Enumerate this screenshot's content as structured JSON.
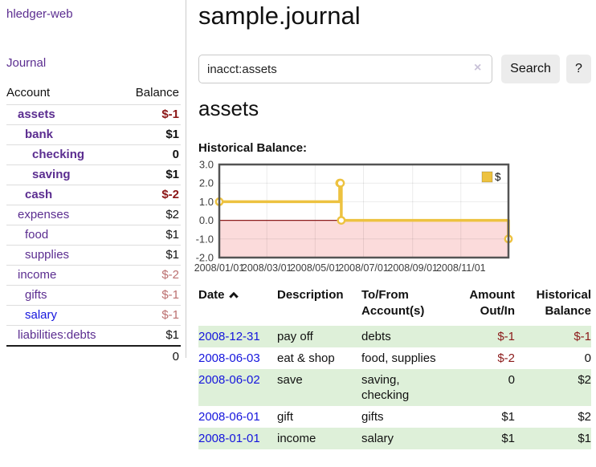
{
  "app": {
    "title": "hledger-web"
  },
  "colors": {
    "link_purple": "#5b2d90",
    "link_blue": "#1515dd",
    "negative_strong": "#8b1515",
    "negative_soft": "#bb6f6f",
    "row_stripe_green": "#def0d9",
    "button_gray": "#ececec"
  },
  "sidebar": {
    "journal_link": "Journal",
    "accounts": {
      "headers": {
        "account": "Account",
        "balance": "Balance"
      },
      "rows": [
        {
          "name": "assets",
          "indent": 1,
          "bold": true,
          "link_style": "purple",
          "balance": "$-1",
          "balance_style": "neg-strong"
        },
        {
          "name": "bank",
          "indent": 2,
          "bold": true,
          "link_style": "purple",
          "balance": "$1",
          "balance_style": "pos"
        },
        {
          "name": "checking",
          "indent": 3,
          "bold": true,
          "link_style": "purple",
          "balance": "0",
          "balance_style": "pos"
        },
        {
          "name": "saving",
          "indent": 3,
          "bold": true,
          "link_style": "purple",
          "balance": "$1",
          "balance_style": "pos"
        },
        {
          "name": "cash",
          "indent": 2,
          "bold": true,
          "link_style": "purple",
          "balance": "$-2",
          "balance_style": "neg-strong"
        },
        {
          "name": "expenses",
          "indent": 1,
          "bold": false,
          "link_style": "purple",
          "balance": "$2",
          "balance_style": "pos"
        },
        {
          "name": "food",
          "indent": 2,
          "bold": false,
          "link_style": "purple",
          "balance": "$1",
          "balance_style": "pos"
        },
        {
          "name": "supplies",
          "indent": 2,
          "bold": false,
          "link_style": "purple",
          "balance": "$1",
          "balance_style": "pos"
        },
        {
          "name": "income",
          "indent": 1,
          "bold": false,
          "link_style": "purple",
          "balance": "$-2",
          "balance_style": "neg-soft"
        },
        {
          "name": "gifts",
          "indent": 2,
          "bold": false,
          "link_style": "purple",
          "balance": "$-1",
          "balance_style": "neg-soft"
        },
        {
          "name": "salary",
          "indent": 2,
          "bold": false,
          "link_style": "blue",
          "balance": "$-1",
          "balance_style": "neg-soft"
        },
        {
          "name": "liabilities:debts",
          "indent": 1,
          "bold": false,
          "link_style": "purple",
          "balance": "$1",
          "balance_style": "pos"
        }
      ],
      "total": "0"
    }
  },
  "header": {
    "title": "sample.journal"
  },
  "search": {
    "value": "inacct:assets",
    "clear_icon": "×",
    "button_label": "Search",
    "help_label": "?"
  },
  "register": {
    "account_title": "assets",
    "chart_label": "Historical Balance:",
    "headers": {
      "date": "Date",
      "description": "Description",
      "tofrom": "To/From Account(s)",
      "amount": "Amount Out/In",
      "balance": "Historical Balance"
    },
    "rows": [
      {
        "date": "2008-12-31",
        "description": "pay off",
        "accounts": "debts",
        "amount": "$-1",
        "amount_neg": true,
        "balance": "$-1",
        "balance_neg": true,
        "shaded": true
      },
      {
        "date": "2008-06-03",
        "description": "eat & shop",
        "accounts": "food, supplies",
        "amount": "$-2",
        "amount_neg": true,
        "balance": "0",
        "balance_neg": false,
        "shaded": false
      },
      {
        "date": "2008-06-02",
        "description": "save",
        "accounts": "saving, checking",
        "amount": "0",
        "amount_neg": false,
        "balance": "$2",
        "balance_neg": false,
        "shaded": true
      },
      {
        "date": "2008-06-01",
        "description": "gift",
        "accounts": "gifts",
        "amount": "$1",
        "amount_neg": false,
        "balance": "$2",
        "balance_neg": false,
        "shaded": false
      },
      {
        "date": "2008-01-01",
        "description": "income",
        "accounts": "salary",
        "amount": "$1",
        "amount_neg": false,
        "balance": "$1",
        "balance_neg": false,
        "shaded": true
      }
    ]
  },
  "chart_data": {
    "type": "line",
    "title": "Historical Balance",
    "series": [
      {
        "name": "$",
        "color": "#edc240",
        "points": [
          [
            "2008-01-01",
            1
          ],
          [
            "2008-06-01",
            2
          ],
          [
            "2008-06-02",
            2
          ],
          [
            "2008-06-03",
            0
          ],
          [
            "2008-12-31",
            -1
          ]
        ]
      }
    ],
    "step": true,
    "x_start": "2008/01/01",
    "x_end": "2008/12/31",
    "x_ticks": [
      "2008/01/01",
      "2008/03/01",
      "2008/05/01",
      "2008/07/01",
      "2008/09/01",
      "2008/11/01"
    ],
    "y_ticks": [
      "3.0",
      "2.0",
      "1.0",
      "0.0",
      "-1.0",
      "-2.0"
    ],
    "ylim": [
      -2,
      3
    ],
    "grid": true,
    "legend_position": "top-right",
    "negative_region_color": "#fbdbdb",
    "zero_line_color": "#8b1d1d",
    "border_color": "#545454",
    "tick_color": "#3d3d3d"
  }
}
